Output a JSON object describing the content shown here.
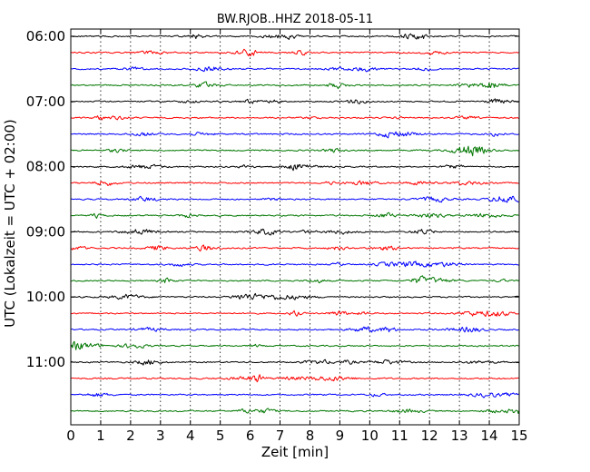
{
  "chart_data": {
    "type": "line",
    "subtype": "seismic-dayplot",
    "title": "BW.RJOB..HHZ 2018-05-11",
    "xlabel": "Zeit  [min]",
    "ylabel": "UTC (Lokalzeit = UTC + 02:00)",
    "xlim": [
      0,
      15
    ],
    "xticks": [
      0,
      1,
      2,
      3,
      4,
      5,
      6,
      7,
      8,
      9,
      10,
      11,
      12,
      13,
      14,
      15
    ],
    "xtick_labels": [
      "0",
      "1",
      "2",
      "3",
      "4",
      "5",
      "6",
      "7",
      "8",
      "9",
      "10",
      "11",
      "12",
      "13",
      "14",
      "15"
    ],
    "grid": {
      "x": true,
      "y": false,
      "style": "dotted"
    },
    "interval_minutes": 15,
    "start_time": "06:00",
    "trace_count": 24,
    "color_cycle": [
      "#000000",
      "#ff0000",
      "#0000ff",
      "#007700"
    ],
    "ytick_labels": [
      {
        "row": 0,
        "label": "06:00"
      },
      {
        "row": 4,
        "label": "07:00"
      },
      {
        "row": 8,
        "label": "08:00"
      },
      {
        "row": 12,
        "label": "09:00"
      },
      {
        "row": 16,
        "label": "10:00"
      },
      {
        "row": 20,
        "label": "11:00"
      }
    ]
  }
}
